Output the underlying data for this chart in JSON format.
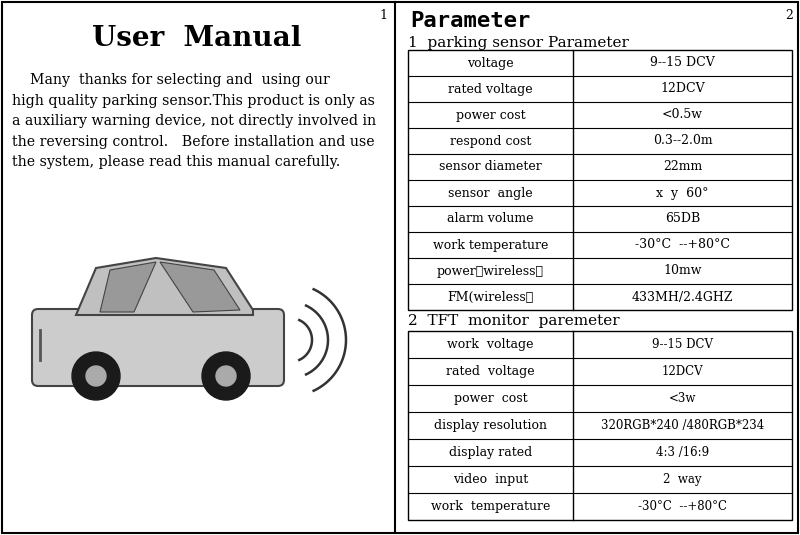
{
  "title_left": "User  Manual",
  "body_text": "    Many  thanks for selecting and  using our\nhigh quality parking sensor.This product is only as\na auxiliary warning device, not directly involved in\nthe reversing control.   Before installation and use\nthe system, please read this manual carefully.",
  "title_right": "Parameter",
  "section1_title": "1  parking sensor Parameter",
  "section1_rows": [
    [
      "voltage",
      "9--15 DCV"
    ],
    [
      "rated voltage",
      "12DCV"
    ],
    [
      "power cost",
      "<0.5w"
    ],
    [
      "respond cost",
      "0.3--2.0m"
    ],
    [
      "sensor diameter",
      "22mm"
    ],
    [
      "sensor  angle",
      "x  y  60°"
    ],
    [
      "alarm volume",
      "65DB"
    ],
    [
      "work temperature",
      "-30°C  --+80°C"
    ],
    [
      "power（wireless）",
      "10mw"
    ],
    [
      "FM(wireless）",
      "433MH/2.4GHZ"
    ]
  ],
  "section2_title": "2  TFT  monitor  paremeter",
  "section2_rows": [
    [
      "work  voltage",
      "9--15 DCV"
    ],
    [
      "rated  voltage",
      "12DCV"
    ],
    [
      "power  cost",
      "<3w"
    ],
    [
      "display resolution",
      "320RGB*240 /480RGB*234"
    ],
    [
      "display rated",
      "4:3 /16:9"
    ],
    [
      "video  input",
      "2  way"
    ],
    [
      "work  temperature",
      "-30°C  --+80°C"
    ]
  ],
  "bg_color": "#ffffff",
  "text_color": "#000000",
  "border_color": "#000000",
  "page_num_left": "1",
  "page_num_right": "2"
}
